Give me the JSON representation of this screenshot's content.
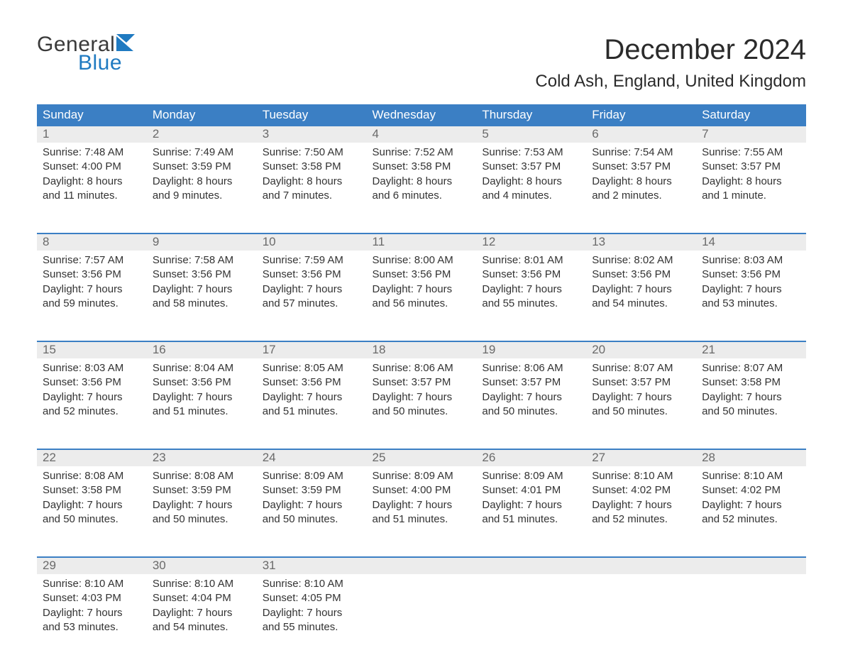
{
  "logo": {
    "line1": "General",
    "line2": "Blue",
    "logo_dark_color": "#3a3a3a",
    "logo_blue_color": "#1f7ac1"
  },
  "title": "December 2024",
  "location": "Cold Ash, England, United Kingdom",
  "colors": {
    "header_bg": "#3b7fc4",
    "header_text": "#ffffff",
    "daynum_bg": "#ececec",
    "daynum_text": "#6a6a6a",
    "body_text": "#333333",
    "week_separator": "#3b7fc4"
  },
  "typography": {
    "title_fontsize": 40,
    "location_fontsize": 24,
    "weekday_fontsize": 17,
    "daynum_fontsize": 17,
    "cell_fontsize": 15,
    "font_family": "Arial"
  },
  "layout": {
    "columns": 7,
    "rows": 5,
    "start_weekday": "Sunday"
  },
  "weekdays": [
    "Sunday",
    "Monday",
    "Tuesday",
    "Wednesday",
    "Thursday",
    "Friday",
    "Saturday"
  ],
  "labels": {
    "sunrise": "Sunrise:",
    "sunset": "Sunset:",
    "daylight": "Daylight:"
  },
  "weeks": [
    [
      {
        "day": "1",
        "sunrise": "7:48 AM",
        "sunset": "4:00 PM",
        "daylight_l1": "8 hours",
        "daylight_l2": "and 11 minutes."
      },
      {
        "day": "2",
        "sunrise": "7:49 AM",
        "sunset": "3:59 PM",
        "daylight_l1": "8 hours",
        "daylight_l2": "and 9 minutes."
      },
      {
        "day": "3",
        "sunrise": "7:50 AM",
        "sunset": "3:58 PM",
        "daylight_l1": "8 hours",
        "daylight_l2": "and 7 minutes."
      },
      {
        "day": "4",
        "sunrise": "7:52 AM",
        "sunset": "3:58 PM",
        "daylight_l1": "8 hours",
        "daylight_l2": "and 6 minutes."
      },
      {
        "day": "5",
        "sunrise": "7:53 AM",
        "sunset": "3:57 PM",
        "daylight_l1": "8 hours",
        "daylight_l2": "and 4 minutes."
      },
      {
        "day": "6",
        "sunrise": "7:54 AM",
        "sunset": "3:57 PM",
        "daylight_l1": "8 hours",
        "daylight_l2": "and 2 minutes."
      },
      {
        "day": "7",
        "sunrise": "7:55 AM",
        "sunset": "3:57 PM",
        "daylight_l1": "8 hours",
        "daylight_l2": "and 1 minute."
      }
    ],
    [
      {
        "day": "8",
        "sunrise": "7:57 AM",
        "sunset": "3:56 PM",
        "daylight_l1": "7 hours",
        "daylight_l2": "and 59 minutes."
      },
      {
        "day": "9",
        "sunrise": "7:58 AM",
        "sunset": "3:56 PM",
        "daylight_l1": "7 hours",
        "daylight_l2": "and 58 minutes."
      },
      {
        "day": "10",
        "sunrise": "7:59 AM",
        "sunset": "3:56 PM",
        "daylight_l1": "7 hours",
        "daylight_l2": "and 57 minutes."
      },
      {
        "day": "11",
        "sunrise": "8:00 AM",
        "sunset": "3:56 PM",
        "daylight_l1": "7 hours",
        "daylight_l2": "and 56 minutes."
      },
      {
        "day": "12",
        "sunrise": "8:01 AM",
        "sunset": "3:56 PM",
        "daylight_l1": "7 hours",
        "daylight_l2": "and 55 minutes."
      },
      {
        "day": "13",
        "sunrise": "8:02 AM",
        "sunset": "3:56 PM",
        "daylight_l1": "7 hours",
        "daylight_l2": "and 54 minutes."
      },
      {
        "day": "14",
        "sunrise": "8:03 AM",
        "sunset": "3:56 PM",
        "daylight_l1": "7 hours",
        "daylight_l2": "and 53 minutes."
      }
    ],
    [
      {
        "day": "15",
        "sunrise": "8:03 AM",
        "sunset": "3:56 PM",
        "daylight_l1": "7 hours",
        "daylight_l2": "and 52 minutes."
      },
      {
        "day": "16",
        "sunrise": "8:04 AM",
        "sunset": "3:56 PM",
        "daylight_l1": "7 hours",
        "daylight_l2": "and 51 minutes."
      },
      {
        "day": "17",
        "sunrise": "8:05 AM",
        "sunset": "3:56 PM",
        "daylight_l1": "7 hours",
        "daylight_l2": "and 51 minutes."
      },
      {
        "day": "18",
        "sunrise": "8:06 AM",
        "sunset": "3:57 PM",
        "daylight_l1": "7 hours",
        "daylight_l2": "and 50 minutes."
      },
      {
        "day": "19",
        "sunrise": "8:06 AM",
        "sunset": "3:57 PM",
        "daylight_l1": "7 hours",
        "daylight_l2": "and 50 minutes."
      },
      {
        "day": "20",
        "sunrise": "8:07 AM",
        "sunset": "3:57 PM",
        "daylight_l1": "7 hours",
        "daylight_l2": "and 50 minutes."
      },
      {
        "day": "21",
        "sunrise": "8:07 AM",
        "sunset": "3:58 PM",
        "daylight_l1": "7 hours",
        "daylight_l2": "and 50 minutes."
      }
    ],
    [
      {
        "day": "22",
        "sunrise": "8:08 AM",
        "sunset": "3:58 PM",
        "daylight_l1": "7 hours",
        "daylight_l2": "and 50 minutes."
      },
      {
        "day": "23",
        "sunrise": "8:08 AM",
        "sunset": "3:59 PM",
        "daylight_l1": "7 hours",
        "daylight_l2": "and 50 minutes."
      },
      {
        "day": "24",
        "sunrise": "8:09 AM",
        "sunset": "3:59 PM",
        "daylight_l1": "7 hours",
        "daylight_l2": "and 50 minutes."
      },
      {
        "day": "25",
        "sunrise": "8:09 AM",
        "sunset": "4:00 PM",
        "daylight_l1": "7 hours",
        "daylight_l2": "and 51 minutes."
      },
      {
        "day": "26",
        "sunrise": "8:09 AM",
        "sunset": "4:01 PM",
        "daylight_l1": "7 hours",
        "daylight_l2": "and 51 minutes."
      },
      {
        "day": "27",
        "sunrise": "8:10 AM",
        "sunset": "4:02 PM",
        "daylight_l1": "7 hours",
        "daylight_l2": "and 52 minutes."
      },
      {
        "day": "28",
        "sunrise": "8:10 AM",
        "sunset": "4:02 PM",
        "daylight_l1": "7 hours",
        "daylight_l2": "and 52 minutes."
      }
    ],
    [
      {
        "day": "29",
        "sunrise": "8:10 AM",
        "sunset": "4:03 PM",
        "daylight_l1": "7 hours",
        "daylight_l2": "and 53 minutes."
      },
      {
        "day": "30",
        "sunrise": "8:10 AM",
        "sunset": "4:04 PM",
        "daylight_l1": "7 hours",
        "daylight_l2": "and 54 minutes."
      },
      {
        "day": "31",
        "sunrise": "8:10 AM",
        "sunset": "4:05 PM",
        "daylight_l1": "7 hours",
        "daylight_l2": "and 55 minutes."
      },
      null,
      null,
      null,
      null
    ]
  ]
}
